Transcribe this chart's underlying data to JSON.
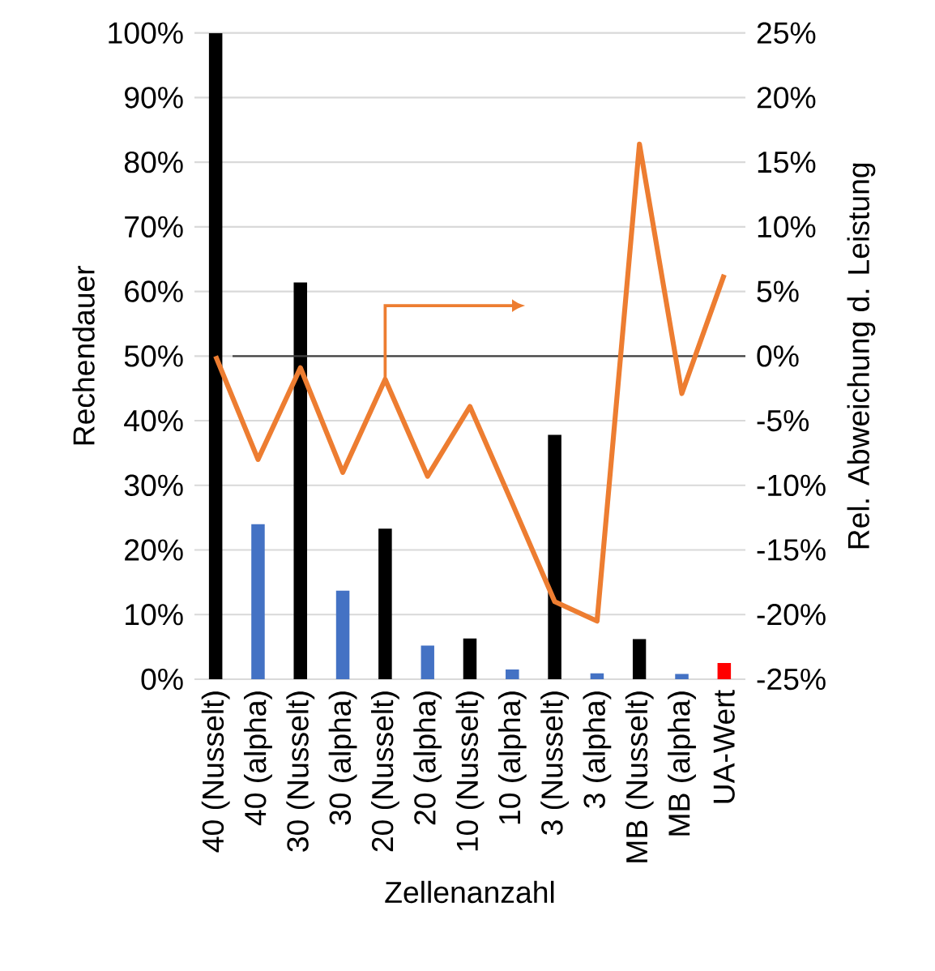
{
  "chart_data": {
    "type": "bar",
    "xlabel": "Zellenanzahl",
    "ylabel": "Rechendauer",
    "y2label": "Rel. Abweichung d. Leistung",
    "categories": [
      "40 (Nusselt)",
      "40 (alpha)",
      "30 (Nusselt)",
      "30 (alpha)",
      "20 (Nusselt)",
      "20 (alpha)",
      "10 (Nusselt)",
      "10 (alpha)",
      "3 (Nusselt)",
      "3 (alpha)",
      "MB (Nusselt)",
      "MB (alpha)",
      "UA-Wert"
    ],
    "series": [
      {
        "colors": [
          "#000000",
          "#4472c4",
          "#000000",
          "#4472c4",
          "#000000",
          "#4472c4",
          "#000000",
          "#4472c4",
          "#000000",
          "#4472c4",
          "#000000",
          "#4472c4",
          "#ff0000"
        ],
        "values": [
          100,
          24,
          61.4,
          13.7,
          23.3,
          5.2,
          6.3,
          1.5,
          37.8,
          0.9,
          6.2,
          0.8,
          2.5
        ]
      },
      {
        "type": "line",
        "axis": "y2",
        "color": "#ed7d31",
        "values": [
          0,
          -8,
          -0.9,
          -9,
          -1.8,
          -9.3,
          -3.9,
          -11.4,
          -19,
          -20.5,
          16.4,
          -2.9,
          6.3
        ]
      }
    ],
    "ylim": [
      0,
      100
    ],
    "yticks": [
      {
        "value": 0,
        "label": "0%"
      },
      {
        "value": 10,
        "label": "10%"
      },
      {
        "value": 20,
        "label": "20%"
      },
      {
        "value": 30,
        "label": "30%"
      },
      {
        "value": 40,
        "label": "40%"
      },
      {
        "value": 50,
        "label": "50%"
      },
      {
        "value": 60,
        "label": "60%"
      },
      {
        "value": 70,
        "label": "70%"
      },
      {
        "value": 80,
        "label": "80%"
      },
      {
        "value": 90,
        "label": "90%"
      },
      {
        "value": 100,
        "label": "100%"
      }
    ],
    "y2lim": [
      -25,
      25
    ],
    "y2ticks": [
      {
        "value": -25,
        "label": "-25%"
      },
      {
        "value": -20,
        "label": "-20%"
      },
      {
        "value": -15,
        "label": "-15%"
      },
      {
        "value": -10,
        "label": "-10%"
      },
      {
        "value": -5,
        "label": "-5%"
      },
      {
        "value": 0,
        "label": "0%"
      },
      {
        "value": 5,
        "label": "5%"
      },
      {
        "value": 10,
        "label": "10%"
      },
      {
        "value": 15,
        "label": "15%"
      },
      {
        "value": 20,
        "label": "20%"
      },
      {
        "value": 25,
        "label": "25%"
      }
    ],
    "ref_lines": [
      {
        "axis": "y2",
        "value": 0,
        "color": "#404040"
      }
    ],
    "grid": "y"
  }
}
